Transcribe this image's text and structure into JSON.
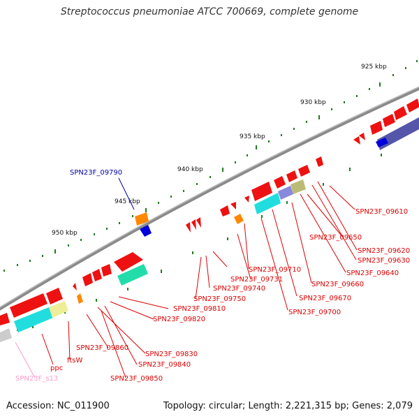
{
  "title": "Streptococcus pneumoniae ATCC 700669, complete genome",
  "accession": "Accession: NC_011900",
  "summary": "Topology: circular; Length: 2,221,315 bp; Genes: 2,079",
  "colors": {
    "backbone": "#8a8a8a",
    "label_red": "#dd0000",
    "label_blue": "#0000aa",
    "label_pink": "#ff99cc",
    "tick_green": "#1f7a1f"
  },
  "scale_labels": [
    "925 kbp",
    "930 kbp",
    "935 kbp",
    "940 kbp",
    "945 kbp",
    "950 kbp"
  ],
  "gene_labels": {
    "SPN23F_09790": "SPN23F_09790",
    "SPN23F_09610": "SPN23F_09610",
    "SPN23F_09650": "SPN23F_09650",
    "SPN23F_09620": "SPN23F_09620",
    "SPN23F_09630": "SPN23F_09630",
    "SPN23F_09640": "SPN23F_09640",
    "SPN23F_09660": "SPN23F_09660",
    "SPN23F_09710": "SPN23F_09710",
    "SPN23F_09731": "SPN23F_09731",
    "SPN23F_09740": "SPN23F_09740",
    "SPN23F_09750": "SPN23F_09750",
    "SPN23F_09670": "SPN23F_09670",
    "SPN23F_09700": "SPN23F_09700",
    "SPN23F_09810": "SPN23F_09810",
    "SPN23F_09820": "SPN23F_09820",
    "SPN23F_09830": "SPN23F_09830",
    "SPN23F_09840": "SPN23F_09840",
    "SPN23F_09850": "SPN23F_09850",
    "SPN23F_09860": "SPN23F_09860",
    "ftsW": "ftsW",
    "ppc": "ppc",
    "SPN23F_s13": "SPN23F_s13"
  }
}
